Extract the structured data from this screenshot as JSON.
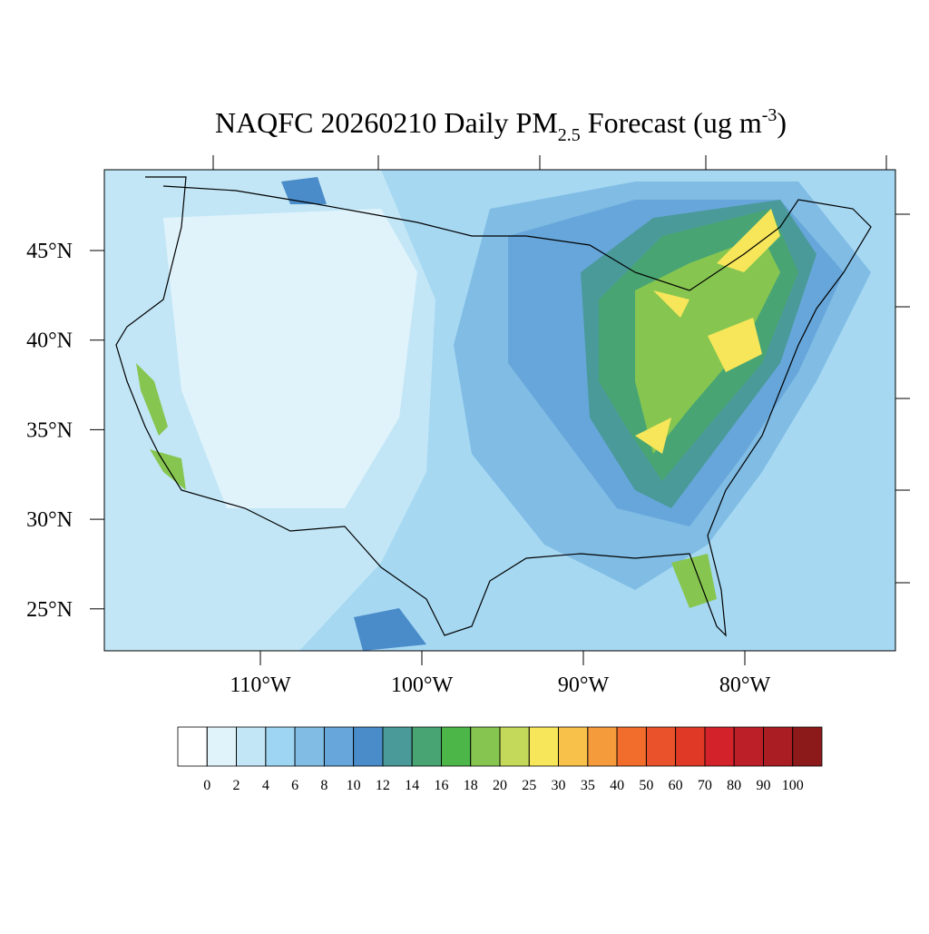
{
  "title": {
    "text": "NAQFC 20260210 Daily PM",
    "subscript": "2.5",
    "text2": " Forecast (ug m",
    "superscript": "-3",
    "end": ")"
  },
  "lat_ticks": [
    {
      "value": 45,
      "label": "45°N"
    },
    {
      "value": 40,
      "label": "40°N"
    },
    {
      "value": 35,
      "label": "35°N"
    },
    {
      "value": 30,
      "label": "30°N"
    },
    {
      "value": 25,
      "label": "25°N"
    }
  ],
  "lon_ticks": [
    {
      "value": -110,
      "label": "110°W"
    },
    {
      "value": -100,
      "label": "100°W"
    },
    {
      "value": -90,
      "label": "90°W"
    },
    {
      "value": -80,
      "label": "80°W"
    }
  ],
  "colorbar": {
    "levels": [
      0,
      2,
      4,
      6,
      8,
      10,
      12,
      14,
      16,
      18,
      20,
      25,
      30,
      35,
      40,
      50,
      60,
      70,
      80,
      90,
      100
    ],
    "colors": [
      "#ffffff",
      "#e0f3fb",
      "#c2e6f6",
      "#9dd5f2",
      "#80bce4",
      "#66a6da",
      "#4a8cc9",
      "#4a9a9a",
      "#48a573",
      "#4cb648",
      "#86c650",
      "#c4d95a",
      "#f7e65a",
      "#f8c14a",
      "#f59b3c",
      "#f26c2c",
      "#e9522a",
      "#e03a26",
      "#d3222a",
      "#bd1f28",
      "#a91d23",
      "#8c1a1a"
    ]
  }
}
